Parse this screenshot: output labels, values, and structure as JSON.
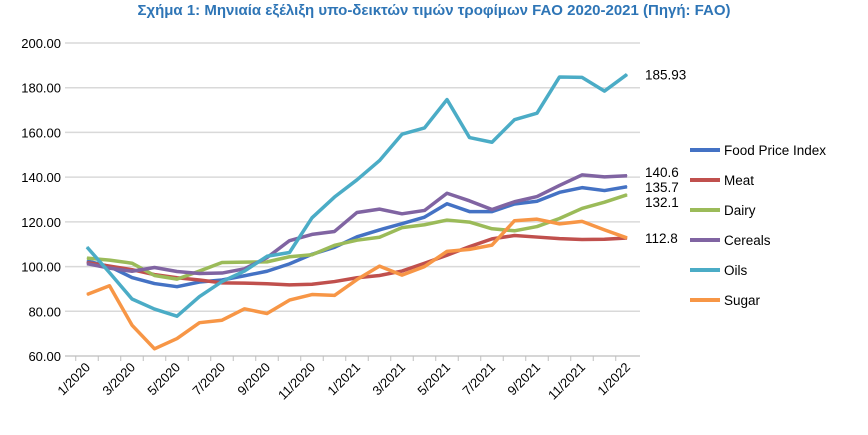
{
  "chart_data": {
    "type": "line",
    "title": "Σχήμα 1: Μηνιαία εξέλιξη υπο-δεικτών τιμών τροφίμων FAO 2020-2021 (Πηγή: FAO)",
    "xlabel": "",
    "ylabel": "",
    "ylim": [
      60,
      200
    ],
    "yticks": [
      "60.00",
      "80.00",
      "100.00",
      "120.00",
      "140.00",
      "160.00",
      "180.00",
      "200.00"
    ],
    "x": [
      "1/2020",
      "2/2020",
      "3/2020",
      "4/2020",
      "5/2020",
      "6/2020",
      "7/2020",
      "8/2020",
      "9/2020",
      "10/2020",
      "11/2020",
      "12/2020",
      "1/2021",
      "2/2021",
      "3/2021",
      "4/2021",
      "5/2021",
      "6/2021",
      "7/2021",
      "8/2021",
      "9/2021",
      "10/2021",
      "11/2021",
      "12/2021",
      "1/2022"
    ],
    "xtick_labels": [
      "1/2020",
      "3/2020",
      "5/2020",
      "7/2020",
      "9/2020",
      "11/2020",
      "1/2021",
      "3/2021",
      "5/2021",
      "7/2021",
      "9/2021",
      "11/2021",
      "1/2022"
    ],
    "grid": true,
    "legend_position": "right",
    "series": [
      {
        "name": "Food Price Index",
        "color": "#4472C4",
        "end_label": "135.7",
        "values": [
          102.5,
          100.0,
          95.1,
          92.4,
          91.0,
          93.1,
          94.0,
          95.9,
          97.9,
          101.2,
          105.5,
          108.6,
          113.3,
          116.4,
          119.2,
          122.1,
          128.1,
          124.6,
          124.6,
          128.0,
          129.2,
          133.2,
          135.3,
          134.0,
          135.7
        ]
      },
      {
        "name": "Meat",
        "color": "#C0504D",
        "end_label": "",
        "values": [
          101.8,
          100.2,
          98.6,
          96.4,
          95.0,
          94.0,
          92.7,
          92.6,
          92.3,
          91.8,
          92.1,
          93.3,
          95.0,
          96.0,
          98.0,
          101.5,
          105.1,
          108.9,
          112.4,
          113.9,
          113.2,
          112.5,
          112.1,
          112.2,
          112.8
        ]
      },
      {
        "name": "Dairy",
        "color": "#9BBB59",
        "end_label": "132.1",
        "values": [
          103.8,
          102.9,
          101.5,
          96.0,
          94.4,
          98.0,
          101.8,
          102.0,
          102.1,
          104.4,
          105.3,
          109.5,
          111.8,
          113.1,
          117.4,
          118.7,
          120.8,
          119.9,
          116.9,
          116.0,
          117.9,
          121.5,
          126.0,
          128.8,
          132.1
        ]
      },
      {
        "name": "Cereals",
        "color": "#8064A2",
        "end_label": "140.6",
        "values": [
          101.3,
          99.3,
          97.9,
          99.6,
          97.8,
          96.9,
          97.1,
          99.0,
          104.0,
          111.6,
          114.4,
          115.7,
          124.2,
          125.7,
          123.6,
          125.1,
          132.8,
          129.4,
          125.5,
          129.0,
          131.3,
          136.3,
          141.0,
          140.1,
          140.6
        ]
      },
      {
        "name": "Oils",
        "color": "#4BACC6",
        "end_label": "185.93",
        "values": [
          108.7,
          97.3,
          85.5,
          81.0,
          77.8,
          86.6,
          93.3,
          98.0,
          104.6,
          106.3,
          121.8,
          131.1,
          138.8,
          147.4,
          159.2,
          162.0,
          174.7,
          157.7,
          155.6,
          165.7,
          168.6,
          184.8,
          184.6,
          178.5,
          185.93
        ]
      },
      {
        "name": "Sugar",
        "color": "#F79646",
        "end_label": "112.8",
        "values": [
          87.5,
          91.4,
          73.8,
          63.2,
          67.8,
          74.9,
          76.0,
          81.1,
          79.0,
          85.0,
          87.5,
          87.1,
          94.2,
          100.2,
          96.2,
          100.0,
          106.8,
          107.7,
          109.6,
          120.5,
          121.2,
          119.1,
          120.2,
          116.4,
          112.8
        ]
      }
    ]
  }
}
